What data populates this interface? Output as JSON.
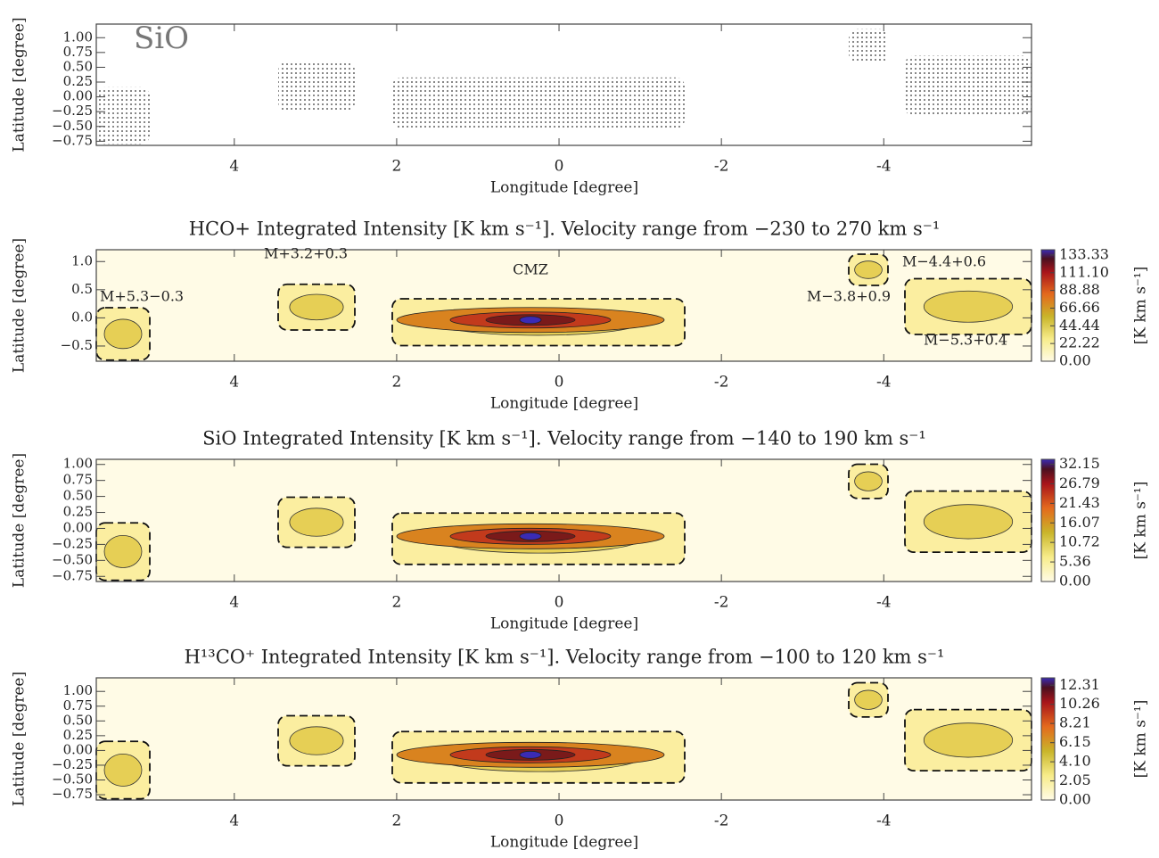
{
  "chart_data": [
    {
      "type": "contour-map",
      "label": "SiO",
      "xlabel": "Longitude [degree]",
      "ylabel": "Latitude [degree]",
      "xlim": [
        5.7,
        -5.82
      ],
      "ylim": [
        -0.82,
        1.23
      ],
      "xticks": [
        4,
        2,
        0,
        -2,
        -4
      ],
      "yticks": [
        {
          "value": 1.0,
          "label": "1.00"
        },
        0.75,
        {
          "value": 0.5,
          "label": "0.50"
        },
        0.25,
        {
          "value": 0,
          "label": "0.00"
        },
        {
          "value": -0.25,
          "label": "−0.25"
        },
        {
          "value": -0.5,
          "label": "−0.50"
        },
        {
          "value": -0.75,
          "label": "−0.75"
        }
      ]
    },
    {
      "type": "contour-map",
      "title": "HCO+  Integrated Intensity [K km s⁻¹]. Velocity range from −230 to 270 km s⁻¹",
      "xlabel": "Longitude [degree]",
      "ylabel": "Latitude [degree]",
      "xlim": [
        5.7,
        -5.82
      ],
      "ylim": [
        -0.77,
        1.21
      ],
      "xticks": [
        4,
        2,
        0,
        -2,
        -4
      ],
      "yticks": [
        {
          "value": 1.0,
          "label": "1.0"
        },
        0.5,
        {
          "value": 0,
          "label": "0.0"
        },
        {
          "value": -0.5,
          "label": "−0.5"
        }
      ],
      "annotations": [
        "M+5.3−0.3",
        "M+3.2+0.3",
        "CMZ",
        "M−3.8+0.9",
        "M−4.4+0.6",
        "M−5.3+0.4"
      ],
      "colorbar": {
        "label": "[K km s⁻¹]",
        "lim": [
          0,
          140
        ],
        "ticks": [
          133.33,
          {
            "value": 111.1,
            "label": "111.10"
          },
          88.88,
          66.66,
          44.44,
          22.22,
          {
            "value": 0,
            "label": "0.00"
          }
        ]
      }
    },
    {
      "type": "contour-map",
      "title": "SiO  Integrated Intensity [K km s⁻¹]. Velocity range from −140 to 190 km s⁻¹",
      "xlabel": "Longitude [degree]",
      "ylabel": "Latitude [degree]",
      "xlim": [
        5.7,
        -5.82
      ],
      "ylim": [
        -0.83,
        1.08
      ],
      "xticks": [
        4,
        2,
        0,
        -2,
        -4
      ],
      "yticks": [
        {
          "value": 1.0,
          "label": "1.00"
        },
        0.75,
        {
          "value": 0.5,
          "label": "0.50"
        },
        0.25,
        {
          "value": 0,
          "label": "0.00"
        },
        {
          "value": -0.25,
          "label": "−0.25"
        },
        {
          "value": -0.5,
          "label": "−0.50"
        },
        {
          "value": -0.75,
          "label": "−0.75"
        }
      ],
      "colorbar": {
        "label": "[K km s⁻¹]",
        "lim": [
          0,
          33.5
        ],
        "ticks": [
          32.15,
          26.79,
          21.43,
          16.07,
          10.72,
          5.36,
          {
            "value": 0,
            "label": "0.00"
          }
        ]
      }
    },
    {
      "type": "contour-map",
      "title": "H¹³CO⁺  Integrated Intensity [K km s⁻¹]. Velocity range from −100 to 120 km s⁻¹",
      "xlabel": "Longitude [degree]",
      "ylabel": "Latitude [degree]",
      "xlim": [
        5.7,
        -5.82
      ],
      "ylim": [
        -0.84,
        1.23
      ],
      "xticks": [
        4,
        2,
        0,
        -2,
        -4
      ],
      "yticks": [
        {
          "value": 1.0,
          "label": "1.00"
        },
        0.75,
        {
          "value": 0.5,
          "label": "0.50"
        },
        0.25,
        {
          "value": 0,
          "label": "0.00"
        },
        {
          "value": -0.25,
          "label": "−0.25"
        },
        {
          "value": -0.5,
          "label": "−0.50"
        },
        {
          "value": -0.75,
          "label": "−0.75"
        }
      ],
      "colorbar": {
        "label": "[K km s⁻¹]",
        "lim": [
          0,
          13.1
        ],
        "ticks": [
          12.31,
          10.26,
          8.21,
          6.15,
          {
            "value": 4.1,
            "label": "4.10"
          },
          2.05,
          {
            "value": 0,
            "label": "0.00"
          }
        ]
      }
    }
  ]
}
